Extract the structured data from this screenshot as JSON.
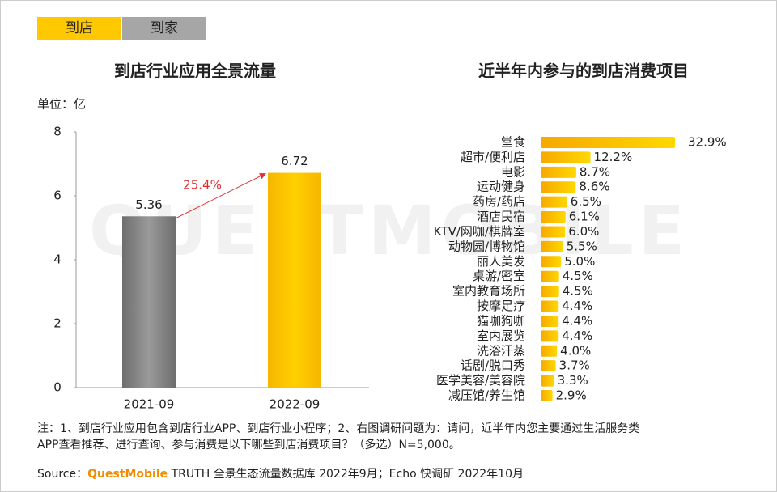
{
  "tabs": [
    "到店",
    "到家"
  ],
  "watermark": "QUESTMOBILE",
  "chart_data": [
    {
      "type": "bar",
      "title": "到店行业应用全景流量",
      "unit": "单位：亿",
      "categories": [
        "2021-09",
        "2022-09"
      ],
      "values": [
        5.36,
        6.72
      ],
      "colors": [
        "#7a7a7a",
        "#ffc800"
      ],
      "ylim": [
        0,
        8
      ],
      "yticks": [
        0,
        2,
        4,
        6,
        8
      ],
      "annotation": "25.4%",
      "annotation_color": "#e03030"
    },
    {
      "type": "hbar",
      "title": "近半年内参与的到店消费项目",
      "categories": [
        "堂食",
        "超市/便利店",
        "电影",
        "运动健身",
        "药房/药店",
        "酒店民宿",
        "KTV/网咖/棋牌室",
        "动物园/博物馆",
        "丽人美发",
        "桌游/密室",
        "室内教育场所",
        "按摩足疗",
        "猫咖狗咖",
        "室内展览",
        "洗浴汗蒸",
        "话剧/脱口秀",
        "医学美容/美容院",
        "减压馆/养生馆"
      ],
      "values": [
        32.9,
        12.2,
        8.7,
        8.6,
        6.5,
        6.1,
        6.0,
        5.5,
        5.0,
        4.5,
        4.5,
        4.4,
        4.4,
        4.4,
        4.0,
        3.7,
        3.3,
        2.9
      ],
      "value_labels": [
        "32.9%",
        "12.2%",
        "8.7%",
        "8.6%",
        "6.5%",
        "6.1%",
        "6.0%",
        "5.5%",
        "5.0%",
        "4.5%",
        "4.5%",
        "4.4%",
        "4.4%",
        "4.4%",
        "4.0%",
        "3.7%",
        "3.3%",
        "2.9%"
      ],
      "color": "#ffc800"
    }
  ],
  "notes": [
    "注：1、到店行业应用包含到店行业APP、到店行业小程序；2、右图调研问题为：请问，近半年内您主要通过生活服务类",
    "APP查看推荐、进行查询、参与消费是以下哪些到店消费项目？（多选）N=5,000。"
  ],
  "source": {
    "label": "Source：",
    "brand": "QuestMobile",
    "text": "TRUTH 全景生态流量数据库 2022年9月；Echo 快调研 2022年10月"
  }
}
